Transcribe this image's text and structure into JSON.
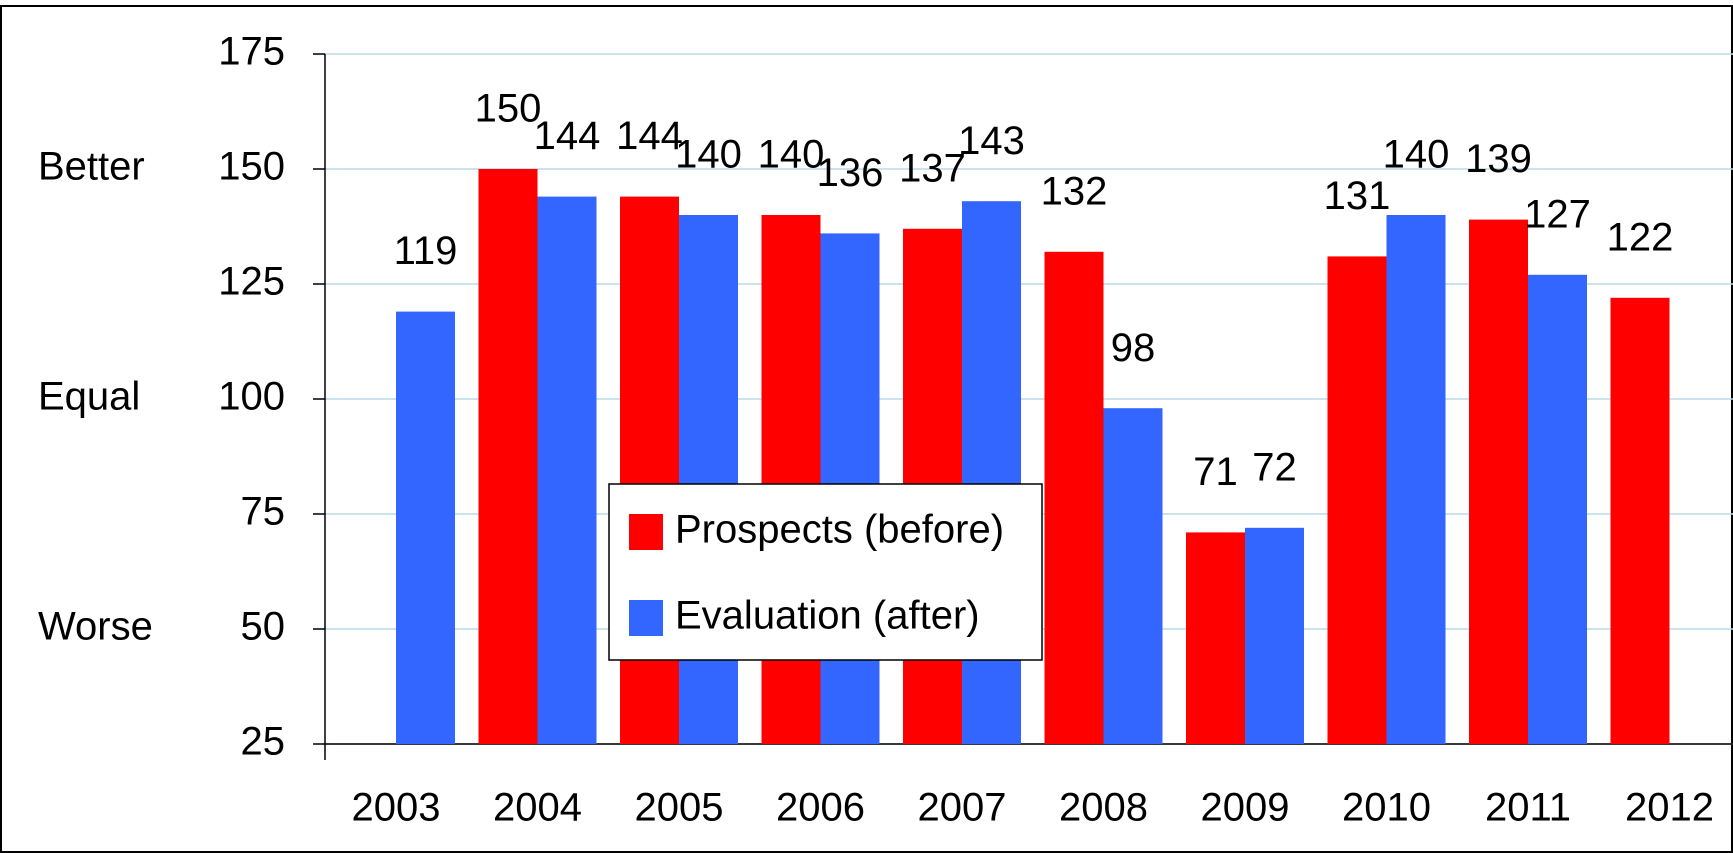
{
  "chart_data": {
    "type": "bar",
    "categories": [
      "2003",
      "2004",
      "2005",
      "2006",
      "2007",
      "2008",
      "2009",
      "2010",
      "2011",
      "2012"
    ],
    "series": [
      {
        "name": "Prospects (before)",
        "color": "#ff0000",
        "values": [
          null,
          150,
          144,
          140,
          137,
          132,
          71,
          131,
          139,
          122
        ]
      },
      {
        "name": "Evaluation (after)",
        "color": "#3366ff",
        "values": [
          119,
          144,
          140,
          136,
          143,
          98,
          72,
          140,
          127,
          null
        ]
      }
    ],
    "ylim": [
      25,
      175
    ],
    "yticks": [
      25,
      50,
      75,
      100,
      125,
      150,
      175
    ],
    "grid": true,
    "y_annotations": [
      {
        "label": "Better",
        "value": 150
      },
      {
        "label": "Equal",
        "value": 100
      },
      {
        "label": "Worse",
        "value": 50
      }
    ],
    "legend": "center"
  }
}
